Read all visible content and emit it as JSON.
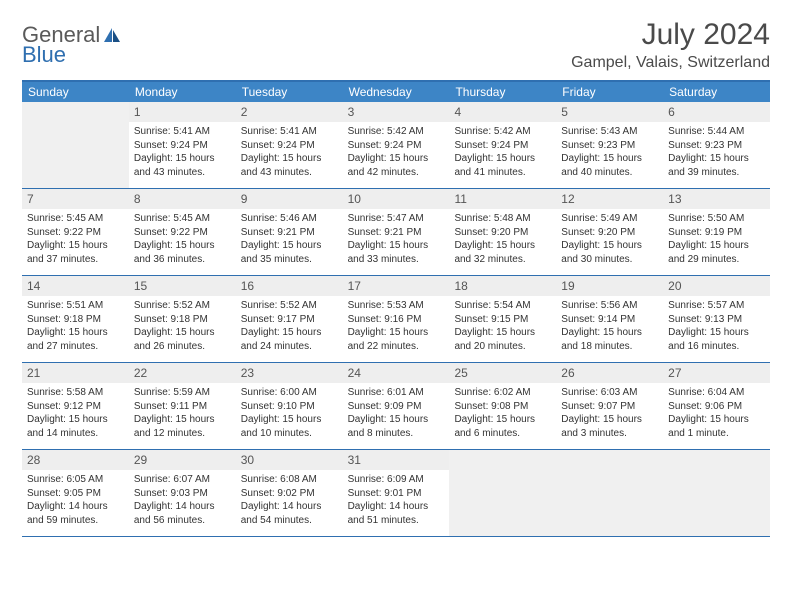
{
  "logo": {
    "word1": "General",
    "word2": "Blue"
  },
  "title": "July 2024",
  "subtitle": "Gampel, Valais, Switzerland",
  "colors": {
    "header_bg": "#3d85c6",
    "border": "#2f6fb0",
    "daynum_bg": "#eeeeee",
    "blank_bg": "#f0f0f0",
    "text": "#333333",
    "title_text": "#4a4a4a",
    "logo_gray": "#5a5a5a",
    "logo_blue": "#2f6fb0"
  },
  "day_headers": [
    "Sunday",
    "Monday",
    "Tuesday",
    "Wednesday",
    "Thursday",
    "Friday",
    "Saturday"
  ],
  "weeks": [
    [
      {
        "blank": true
      },
      {
        "n": "1",
        "sr": "Sunrise: 5:41 AM",
        "ss": "Sunset: 9:24 PM",
        "d1": "Daylight: 15 hours",
        "d2": "and 43 minutes."
      },
      {
        "n": "2",
        "sr": "Sunrise: 5:41 AM",
        "ss": "Sunset: 9:24 PM",
        "d1": "Daylight: 15 hours",
        "d2": "and 43 minutes."
      },
      {
        "n": "3",
        "sr": "Sunrise: 5:42 AM",
        "ss": "Sunset: 9:24 PM",
        "d1": "Daylight: 15 hours",
        "d2": "and 42 minutes."
      },
      {
        "n": "4",
        "sr": "Sunrise: 5:42 AM",
        "ss": "Sunset: 9:24 PM",
        "d1": "Daylight: 15 hours",
        "d2": "and 41 minutes."
      },
      {
        "n": "5",
        "sr": "Sunrise: 5:43 AM",
        "ss": "Sunset: 9:23 PM",
        "d1": "Daylight: 15 hours",
        "d2": "and 40 minutes."
      },
      {
        "n": "6",
        "sr": "Sunrise: 5:44 AM",
        "ss": "Sunset: 9:23 PM",
        "d1": "Daylight: 15 hours",
        "d2": "and 39 minutes."
      }
    ],
    [
      {
        "n": "7",
        "sr": "Sunrise: 5:45 AM",
        "ss": "Sunset: 9:22 PM",
        "d1": "Daylight: 15 hours",
        "d2": "and 37 minutes."
      },
      {
        "n": "8",
        "sr": "Sunrise: 5:45 AM",
        "ss": "Sunset: 9:22 PM",
        "d1": "Daylight: 15 hours",
        "d2": "and 36 minutes."
      },
      {
        "n": "9",
        "sr": "Sunrise: 5:46 AM",
        "ss": "Sunset: 9:21 PM",
        "d1": "Daylight: 15 hours",
        "d2": "and 35 minutes."
      },
      {
        "n": "10",
        "sr": "Sunrise: 5:47 AM",
        "ss": "Sunset: 9:21 PM",
        "d1": "Daylight: 15 hours",
        "d2": "and 33 minutes."
      },
      {
        "n": "11",
        "sr": "Sunrise: 5:48 AM",
        "ss": "Sunset: 9:20 PM",
        "d1": "Daylight: 15 hours",
        "d2": "and 32 minutes."
      },
      {
        "n": "12",
        "sr": "Sunrise: 5:49 AM",
        "ss": "Sunset: 9:20 PM",
        "d1": "Daylight: 15 hours",
        "d2": "and 30 minutes."
      },
      {
        "n": "13",
        "sr": "Sunrise: 5:50 AM",
        "ss": "Sunset: 9:19 PM",
        "d1": "Daylight: 15 hours",
        "d2": "and 29 minutes."
      }
    ],
    [
      {
        "n": "14",
        "sr": "Sunrise: 5:51 AM",
        "ss": "Sunset: 9:18 PM",
        "d1": "Daylight: 15 hours",
        "d2": "and 27 minutes."
      },
      {
        "n": "15",
        "sr": "Sunrise: 5:52 AM",
        "ss": "Sunset: 9:18 PM",
        "d1": "Daylight: 15 hours",
        "d2": "and 26 minutes."
      },
      {
        "n": "16",
        "sr": "Sunrise: 5:52 AM",
        "ss": "Sunset: 9:17 PM",
        "d1": "Daylight: 15 hours",
        "d2": "and 24 minutes."
      },
      {
        "n": "17",
        "sr": "Sunrise: 5:53 AM",
        "ss": "Sunset: 9:16 PM",
        "d1": "Daylight: 15 hours",
        "d2": "and 22 minutes."
      },
      {
        "n": "18",
        "sr": "Sunrise: 5:54 AM",
        "ss": "Sunset: 9:15 PM",
        "d1": "Daylight: 15 hours",
        "d2": "and 20 minutes."
      },
      {
        "n": "19",
        "sr": "Sunrise: 5:56 AM",
        "ss": "Sunset: 9:14 PM",
        "d1": "Daylight: 15 hours",
        "d2": "and 18 minutes."
      },
      {
        "n": "20",
        "sr": "Sunrise: 5:57 AM",
        "ss": "Sunset: 9:13 PM",
        "d1": "Daylight: 15 hours",
        "d2": "and 16 minutes."
      }
    ],
    [
      {
        "n": "21",
        "sr": "Sunrise: 5:58 AM",
        "ss": "Sunset: 9:12 PM",
        "d1": "Daylight: 15 hours",
        "d2": "and 14 minutes."
      },
      {
        "n": "22",
        "sr": "Sunrise: 5:59 AM",
        "ss": "Sunset: 9:11 PM",
        "d1": "Daylight: 15 hours",
        "d2": "and 12 minutes."
      },
      {
        "n": "23",
        "sr": "Sunrise: 6:00 AM",
        "ss": "Sunset: 9:10 PM",
        "d1": "Daylight: 15 hours",
        "d2": "and 10 minutes."
      },
      {
        "n": "24",
        "sr": "Sunrise: 6:01 AM",
        "ss": "Sunset: 9:09 PM",
        "d1": "Daylight: 15 hours",
        "d2": "and 8 minutes."
      },
      {
        "n": "25",
        "sr": "Sunrise: 6:02 AM",
        "ss": "Sunset: 9:08 PM",
        "d1": "Daylight: 15 hours",
        "d2": "and 6 minutes."
      },
      {
        "n": "26",
        "sr": "Sunrise: 6:03 AM",
        "ss": "Sunset: 9:07 PM",
        "d1": "Daylight: 15 hours",
        "d2": "and 3 minutes."
      },
      {
        "n": "27",
        "sr": "Sunrise: 6:04 AM",
        "ss": "Sunset: 9:06 PM",
        "d1": "Daylight: 15 hours",
        "d2": "and 1 minute."
      }
    ],
    [
      {
        "n": "28",
        "sr": "Sunrise: 6:05 AM",
        "ss": "Sunset: 9:05 PM",
        "d1": "Daylight: 14 hours",
        "d2": "and 59 minutes."
      },
      {
        "n": "29",
        "sr": "Sunrise: 6:07 AM",
        "ss": "Sunset: 9:03 PM",
        "d1": "Daylight: 14 hours",
        "d2": "and 56 minutes."
      },
      {
        "n": "30",
        "sr": "Sunrise: 6:08 AM",
        "ss": "Sunset: 9:02 PM",
        "d1": "Daylight: 14 hours",
        "d2": "and 54 minutes."
      },
      {
        "n": "31",
        "sr": "Sunrise: 6:09 AM",
        "ss": "Sunset: 9:01 PM",
        "d1": "Daylight: 14 hours",
        "d2": "and 51 minutes."
      },
      {
        "blank": true
      },
      {
        "blank": true
      },
      {
        "blank": true
      }
    ]
  ]
}
